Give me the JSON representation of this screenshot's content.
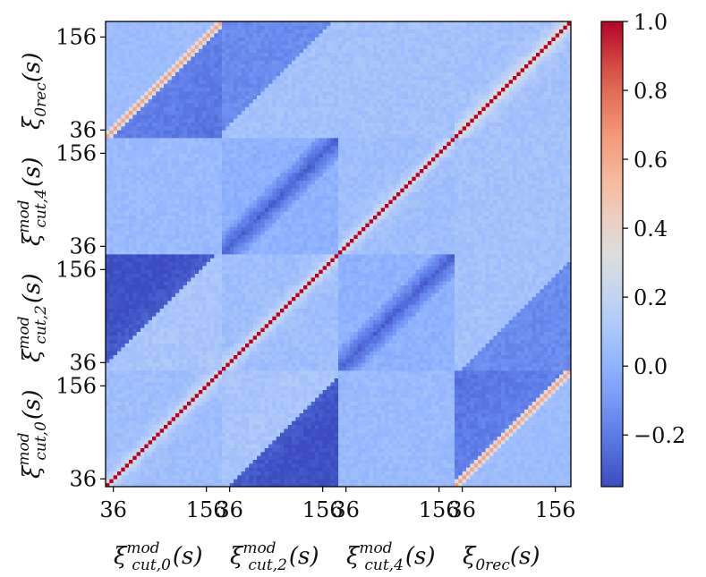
{
  "chart_data": {
    "type": "heatmap",
    "title": "",
    "colormap": "coolwarm",
    "colorbar": {
      "min": -0.35,
      "max": 1.0,
      "ticks": [
        1.0,
        0.8,
        0.6,
        0.4,
        0.2,
        0.0,
        -0.2
      ],
      "tick_labels": [
        "1.0",
        "0.8",
        "0.6",
        "0.4",
        "0.2",
        "0.0",
        "−0.2"
      ]
    },
    "bins_per_block": 30,
    "block_s_range": [
      26,
      176
    ],
    "block_tick_values": [
      36,
      156
    ],
    "block_tick_labels": [
      "36",
      "156"
    ],
    "blocks": [
      {
        "sym": "ξ",
        "sup": "mod",
        "sub": "cut,0",
        "arg": "(s)"
      },
      {
        "sym": "ξ",
        "sup": "mod",
        "sub": "cut,2",
        "arg": "(s)"
      },
      {
        "sym": "ξ",
        "sup": "mod",
        "sub": "cut,4",
        "arg": "(s)"
      },
      {
        "sym": "ξ",
        "sup": "",
        "sub": "0rec",
        "arg": "(s)"
      }
    ],
    "block_pair_features": [
      {
        "i": 0,
        "j": 0,
        "diag_corr": 1.0,
        "off_diag_corr": 0.12
      },
      {
        "i": 1,
        "j": 1,
        "diag_corr": 1.0,
        "off_diag_corr": 0.12
      },
      {
        "i": 2,
        "j": 2,
        "diag_corr": 1.0,
        "off_diag_corr": 0.12
      },
      {
        "i": 3,
        "j": 3,
        "diag_corr": 1.0,
        "off_diag_corr": 0.18
      },
      {
        "i": 0,
        "j": 3,
        "band_corr": 0.5,
        "triangle_corr": -0.22
      },
      {
        "i": 0,
        "j": 1,
        "triangle_corr": -0.3,
        "positive_corr": 0.1
      },
      {
        "i": 1,
        "j": 2,
        "band_corr": -0.3
      },
      {
        "i": 1,
        "j": 3,
        "triangle_corr": -0.15,
        "positive_corr": 0.08
      },
      {
        "i": 2,
        "j": 3,
        "positive_corr": 0.08
      },
      {
        "i": 0,
        "j": 2,
        "positive_corr": 0.05
      }
    ]
  }
}
